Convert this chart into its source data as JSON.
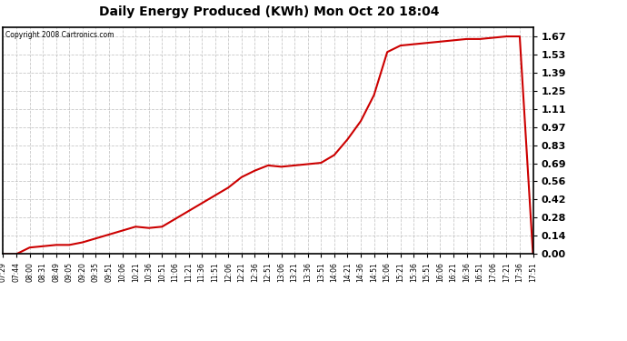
{
  "title": "Daily Energy Produced (KWh) Mon Oct 20 18:04",
  "copyright_text": "Copyright 2008 Cartronics.com",
  "line_color": "#cc0000",
  "bg_color": "#ffffff",
  "grid_color": "#bbbbbb",
  "yticks": [
    0.0,
    0.14,
    0.28,
    0.42,
    0.56,
    0.69,
    0.83,
    0.97,
    1.11,
    1.25,
    1.39,
    1.53,
    1.67
  ],
  "ylim": [
    0.0,
    1.74
  ],
  "xtick_labels": [
    "07:29",
    "07:44",
    "08:00",
    "08:31",
    "08:49",
    "09:05",
    "09:20",
    "09:35",
    "09:51",
    "10:06",
    "10:21",
    "10:36",
    "10:51",
    "11:06",
    "11:21",
    "11:36",
    "11:51",
    "12:06",
    "12:21",
    "12:36",
    "12:51",
    "13:06",
    "13:21",
    "13:36",
    "13:51",
    "14:06",
    "14:21",
    "14:36",
    "14:51",
    "15:06",
    "15:21",
    "15:36",
    "15:51",
    "16:06",
    "16:21",
    "16:36",
    "16:51",
    "17:06",
    "17:21",
    "17:36",
    "17:51"
  ],
  "data_y": [
    0.0,
    0.0,
    0.05,
    0.06,
    0.07,
    0.07,
    0.09,
    0.12,
    0.15,
    0.18,
    0.21,
    0.2,
    0.21,
    0.27,
    0.33,
    0.39,
    0.45,
    0.51,
    0.59,
    0.64,
    0.68,
    0.67,
    0.68,
    0.69,
    0.7,
    0.76,
    0.88,
    1.02,
    1.22,
    1.55,
    1.6,
    1.61,
    1.62,
    1.63,
    1.64,
    1.65,
    1.65,
    1.66,
    1.67,
    1.67,
    0.0
  ]
}
